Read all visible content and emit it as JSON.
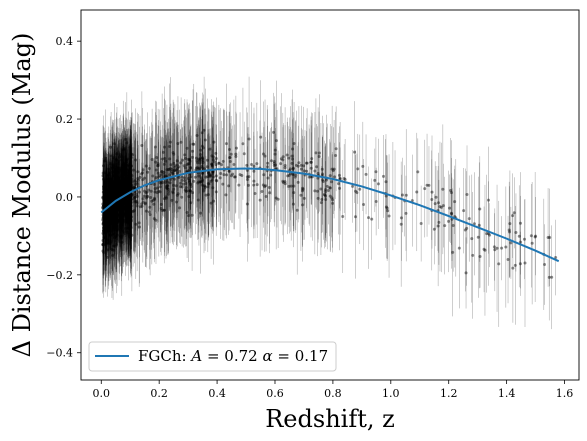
{
  "chart_data": {
    "type": "scatter",
    "xlabel": "Redshift, z",
    "ylabel": "Δ Distance Modulus (Mag)",
    "xlim": [
      -0.07,
      1.65
    ],
    "ylim": [
      -0.47,
      0.48
    ],
    "xticks": [
      0.0,
      0.2,
      0.4,
      0.6,
      0.8,
      1.0,
      1.2,
      1.4,
      1.6
    ],
    "xtick_labels": [
      "0.0",
      "0.2",
      "0.4",
      "0.6",
      "0.8",
      "1.0",
      "1.2",
      "1.4",
      "1.6"
    ],
    "yticks": [
      -0.4,
      -0.2,
      0.0,
      0.2,
      0.4
    ],
    "ytick_labels": [
      "−0.4",
      "−0.2",
      "0.0",
      "0.2",
      "0.4"
    ],
    "grid": false,
    "legend_position": "lower-left",
    "colors": {
      "points": "#000000",
      "fit": "#1f77b4"
    },
    "series": [
      {
        "name": "FGCh: A = 0.72 α = 0.17",
        "legend": {
          "prefix": "FGCh: ",
          "a_sym": "A",
          "a_val": " = 0.72 ",
          "alpha_sym": "α",
          "alpha_val": " = 0.17"
        },
        "kind": "line",
        "x": [
          0.0,
          0.05,
          0.1,
          0.15,
          0.2,
          0.3,
          0.4,
          0.5,
          0.55,
          0.6,
          0.7,
          0.8,
          0.9,
          1.0,
          1.1,
          1.2,
          1.3,
          1.4,
          1.5,
          1.58
        ],
        "y": [
          -0.04,
          -0.01,
          0.012,
          0.03,
          0.043,
          0.062,
          0.071,
          0.073,
          0.072,
          0.069,
          0.06,
          0.046,
          0.027,
          0.004,
          -0.021,
          -0.049,
          -0.078,
          -0.107,
          -0.138,
          -0.165
        ]
      },
      {
        "kind": "scatter",
        "point_count": 1500,
        "density": "dense at low redshift (z < 0.15), sparse above z = 0.6",
        "scatter_y_range": [
          -0.42,
          0.33
        ],
        "error_bar_range": [
          0.03,
          0.2
        ],
        "x_range": [
          0.0,
          1.58
        ]
      }
    ]
  }
}
